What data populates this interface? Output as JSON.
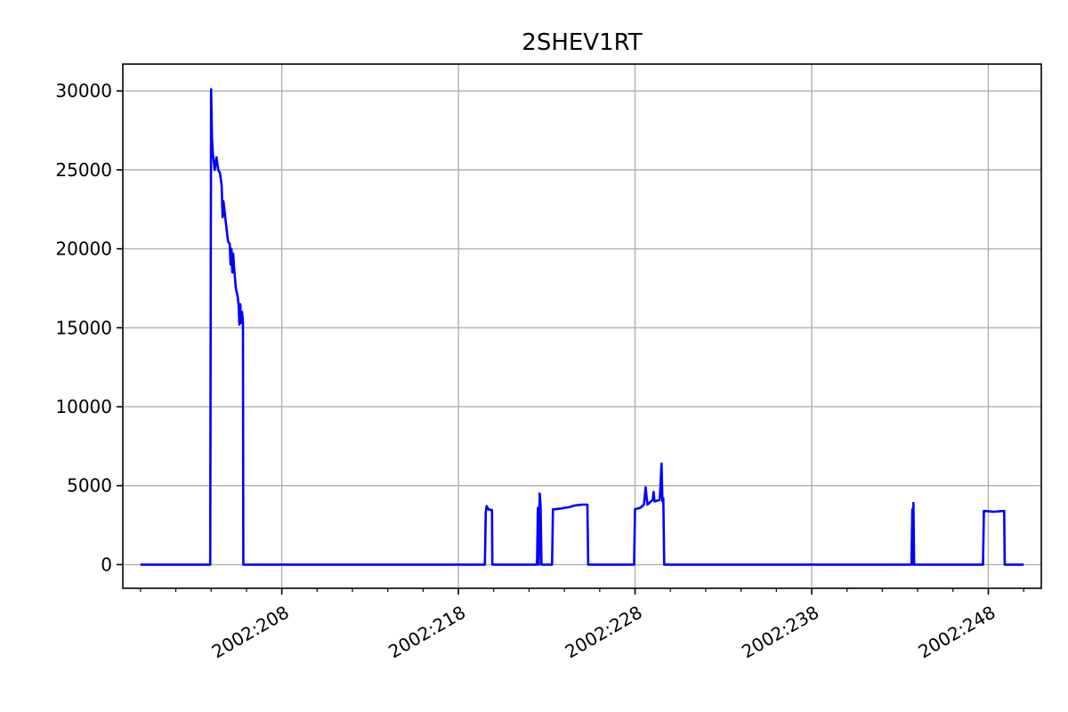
{
  "chart_data": {
    "type": "line",
    "title": "2SHEV1RT",
    "xlabel": "",
    "ylabel": "",
    "x_axis": "day of year (2002:DOY)",
    "xlim": [
      199.0,
      251.0
    ],
    "ylim": [
      -1500,
      31700
    ],
    "grid": true,
    "x_ticks": [
      {
        "value": 208,
        "label": "2002:208"
      },
      {
        "value": 218,
        "label": "2002:218"
      },
      {
        "value": 228,
        "label": "2002:228"
      },
      {
        "value": 238,
        "label": "2002:238"
      },
      {
        "value": 248,
        "label": "2002:248"
      }
    ],
    "y_ticks": [
      {
        "value": 0,
        "label": "0"
      },
      {
        "value": 5000,
        "label": "5000"
      },
      {
        "value": 10000,
        "label": "10000"
      },
      {
        "value": 15000,
        "label": "15000"
      },
      {
        "value": 20000,
        "label": "20000"
      },
      {
        "value": 25000,
        "label": "25000"
      },
      {
        "value": 30000,
        "label": "30000"
      }
    ],
    "series": [
      {
        "color": "#0000ff",
        "points": [
          [
            200.0,
            0
          ],
          [
            203.95,
            0
          ],
          [
            204.0,
            30100
          ],
          [
            204.05,
            27000
          ],
          [
            204.1,
            26000
          ],
          [
            204.2,
            25000
          ],
          [
            204.3,
            25800
          ],
          [
            204.4,
            25000
          ],
          [
            204.5,
            24800
          ],
          [
            204.6,
            24000
          ],
          [
            204.65,
            22000
          ],
          [
            204.7,
            23000
          ],
          [
            204.8,
            22000
          ],
          [
            204.95,
            20500
          ],
          [
            205.05,
            20300
          ],
          [
            205.1,
            19000
          ],
          [
            205.15,
            20000
          ],
          [
            205.2,
            18500
          ],
          [
            205.25,
            19700
          ],
          [
            205.3,
            18800
          ],
          [
            205.4,
            17500
          ],
          [
            205.5,
            17000
          ],
          [
            205.55,
            16500
          ],
          [
            205.6,
            15200
          ],
          [
            205.65,
            16500
          ],
          [
            205.7,
            15300
          ],
          [
            205.75,
            16000
          ],
          [
            205.8,
            15300
          ],
          [
            205.82,
            0
          ],
          [
            219.5,
            0
          ],
          [
            219.55,
            3300
          ],
          [
            219.6,
            3700
          ],
          [
            219.7,
            3500
          ],
          [
            219.9,
            3450
          ],
          [
            219.92,
            0
          ],
          [
            222.45,
            0
          ],
          [
            222.5,
            3600
          ],
          [
            222.55,
            0
          ],
          [
            222.6,
            4500
          ],
          [
            222.65,
            3700
          ],
          [
            222.7,
            0
          ],
          [
            223.3,
            0
          ],
          [
            223.35,
            3500
          ],
          [
            223.8,
            3550
          ],
          [
            224.3,
            3650
          ],
          [
            224.6,
            3750
          ],
          [
            225.0,
            3800
          ],
          [
            225.3,
            3800
          ],
          [
            225.35,
            0
          ],
          [
            227.95,
            0
          ],
          [
            228.0,
            3500
          ],
          [
            228.3,
            3600
          ],
          [
            228.5,
            3800
          ],
          [
            228.6,
            4900
          ],
          [
            228.7,
            3800
          ],
          [
            229.0,
            4100
          ],
          [
            229.05,
            4600
          ],
          [
            229.1,
            4000
          ],
          [
            229.4,
            4100
          ],
          [
            229.5,
            6400
          ],
          [
            229.55,
            4000
          ],
          [
            229.6,
            4200
          ],
          [
            229.65,
            0
          ],
          [
            243.65,
            0
          ],
          [
            243.7,
            3500
          ],
          [
            243.73,
            0
          ],
          [
            243.76,
            3900
          ],
          [
            243.8,
            0
          ],
          [
            247.7,
            0
          ],
          [
            247.75,
            3400
          ],
          [
            248.3,
            3350
          ],
          [
            248.9,
            3400
          ],
          [
            248.93,
            0
          ],
          [
            250.0,
            0
          ]
        ]
      }
    ]
  }
}
